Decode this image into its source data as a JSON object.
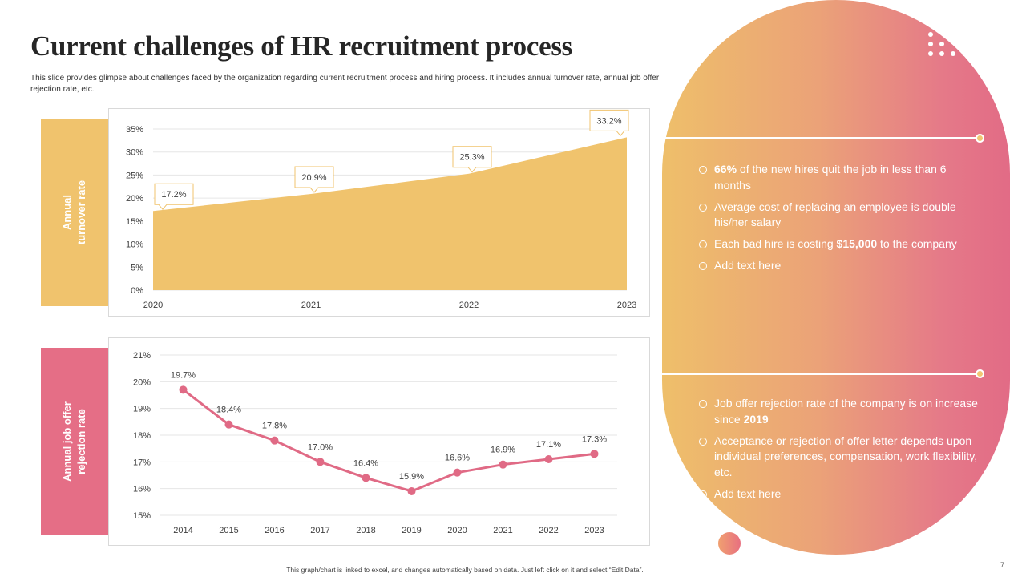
{
  "slide": {
    "title": "Current challenges of HR recruitment process",
    "subtitle": "This slide provides glimpse about challenges faced by the organization regarding current recruitment process and hiring process. It includes annual turnover rate, annual job offer rejection rate, etc.",
    "footer": "This graph/chart is linked to excel, and changes automatically based on data. Just left click on it and select “Edit Data”.",
    "page_number": "7"
  },
  "labels": {
    "turnover": "Annual\nturnover rate",
    "rejection": "Annual job offer\nrejection rate"
  },
  "colors": {
    "area": "#f0c36d",
    "line": "#e06a85",
    "label_yellow": "#f0c36d",
    "label_pink": "#e56e86"
  },
  "bullets_top": [
    {
      "bold": "66%",
      "text": " of the new hires quit the job in less than 6 months"
    },
    {
      "text": "Average cost of replacing an employee is double his/her salary"
    },
    {
      "text": "Each bad hire is costing ",
      "bold": "$15,000",
      "after": " to the company"
    },
    {
      "text": "Add text here"
    }
  ],
  "bullets_bottom": [
    {
      "text": "Job offer rejection rate of the company is on increase since ",
      "bold": "2019"
    },
    {
      "text": "Acceptance or rejection of offer letter depends upon individual preferences, compensation, work flexibility, etc."
    },
    {
      "text": "Add text here"
    }
  ],
  "chart_data": [
    {
      "type": "area",
      "title": "Annual turnover rate",
      "categories": [
        "2020",
        "2021",
        "2022",
        "2023"
      ],
      "values": [
        17.2,
        20.9,
        25.3,
        33.2
      ],
      "data_labels": [
        "17.2%",
        "20.9%",
        "25.3%",
        "33.2%"
      ],
      "ylim": [
        0,
        35
      ],
      "yticks": [
        "0%",
        "5%",
        "10%",
        "15%",
        "20%",
        "25%",
        "30%",
        "35%"
      ],
      "ytick_values": [
        0,
        5,
        10,
        15,
        20,
        25,
        30,
        35
      ],
      "grid": true
    },
    {
      "type": "line",
      "title": "Annual job offer rejection rate",
      "categories": [
        "2014",
        "2015",
        "2016",
        "2017",
        "2018",
        "2019",
        "2020",
        "2021",
        "2022",
        "2023"
      ],
      "values": [
        19.7,
        18.4,
        17.8,
        17.0,
        16.4,
        15.9,
        16.6,
        16.9,
        17.1,
        17.3
      ],
      "data_labels": [
        "19.7%",
        "18.4%",
        "17.8%",
        "17.0%",
        "16.4%",
        "15.9%",
        "16.6%",
        "16.9%",
        "17.1%",
        "17.3%"
      ],
      "ylim": [
        15,
        21
      ],
      "yticks": [
        "15%",
        "16%",
        "17%",
        "18%",
        "19%",
        "20%",
        "21%"
      ],
      "ytick_values": [
        15,
        16,
        17,
        18,
        19,
        20,
        21
      ],
      "grid": true
    }
  ]
}
